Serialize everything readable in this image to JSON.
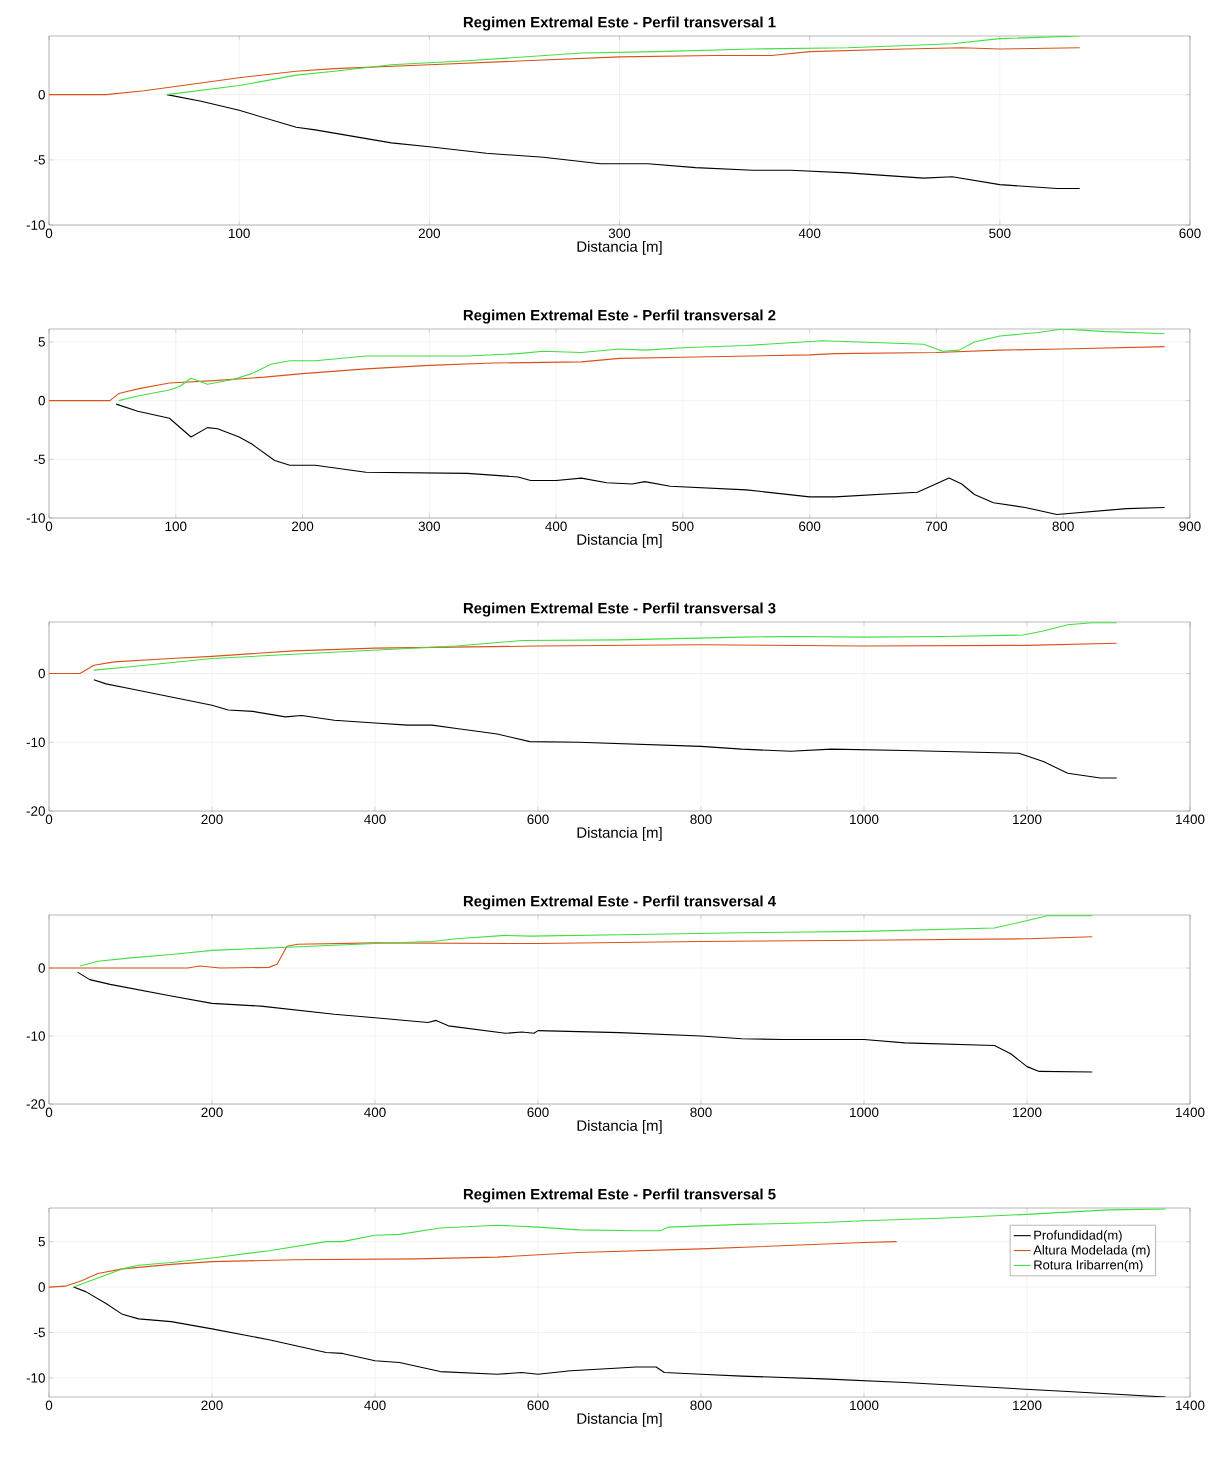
{
  "chart_data": [
    {
      "type": "line",
      "title": "Regimen Extremal Este - Perfil transversal 1",
      "xlabel": "Distancia [m]",
      "xlim": [
        0,
        600
      ],
      "ylim": [
        -10,
        4.5
      ],
      "xticks": [
        0,
        100,
        200,
        300,
        400,
        500,
        600
      ],
      "yticks": [
        -10,
        -5,
        0
      ],
      "grid": true,
      "line_style": "solid",
      "marker": "none",
      "series": [
        {
          "color": "#000000",
          "x": [
            62,
            80,
            100,
            130,
            140,
            160,
            180,
            200,
            230,
            260,
            290,
            315,
            340,
            370,
            390,
            420,
            460,
            475,
            500,
            530,
            542
          ],
          "values": [
            0,
            -0.5,
            -1.2,
            -2.5,
            -2.7,
            -3.2,
            -3.7,
            -4.0,
            -4.5,
            -4.8,
            -5.3,
            -5.3,
            -5.6,
            -5.8,
            -5.8,
            -6.0,
            -6.4,
            -6.3,
            -6.9,
            -7.2,
            -7.2
          ]
        },
        {
          "color": "#d95319",
          "x": [
            0,
            30,
            50,
            75,
            100,
            130,
            150,
            200,
            250,
            300,
            350,
            380,
            400,
            450,
            480,
            500,
            542
          ],
          "values": [
            0,
            0,
            0.3,
            0.8,
            1.3,
            1.8,
            2.0,
            2.3,
            2.6,
            2.9,
            3.0,
            3.0,
            3.3,
            3.5,
            3.6,
            3.5,
            3.6
          ]
        },
        {
          "color": "#40e040",
          "x": [
            62,
            100,
            130,
            150,
            180,
            220,
            280,
            320,
            370,
            420,
            475,
            500,
            542
          ],
          "values": [
            0,
            0.7,
            1.5,
            1.8,
            2.3,
            2.6,
            3.2,
            3.3,
            3.5,
            3.6,
            3.9,
            4.3,
            4.5
          ]
        }
      ]
    },
    {
      "type": "line",
      "title": "Regimen Extremal Este - Perfil transversal 2",
      "xlabel": "Distancia [m]",
      "xlim": [
        0,
        900
      ],
      "ylim": [
        -10,
        6.1
      ],
      "xticks": [
        0,
        100,
        200,
        300,
        400,
        500,
        600,
        700,
        800,
        900
      ],
      "yticks": [
        -10,
        -5,
        0,
        5
      ],
      "grid": true,
      "line_style": "solid",
      "marker": "none",
      "series": [
        {
          "color": "#000000",
          "x": [
            53,
            70,
            95,
            112,
            125,
            133,
            150,
            160,
            178,
            190,
            210,
            250,
            330,
            370,
            380,
            400,
            420,
            440,
            460,
            470,
            490,
            550,
            600,
            620,
            685,
            710,
            720,
            730,
            745,
            770,
            795,
            850,
            880
          ],
          "values": [
            -0.3,
            -0.9,
            -1.5,
            -3.1,
            -2.3,
            -2.4,
            -3.1,
            -3.7,
            -5.1,
            -5.5,
            -5.5,
            -6.1,
            -6.2,
            -6.5,
            -6.8,
            -6.8,
            -6.6,
            -7.0,
            -7.1,
            -6.9,
            -7.3,
            -7.6,
            -8.2,
            -8.2,
            -7.8,
            -6.6,
            -7.1,
            -8.0,
            -8.7,
            -9.1,
            -9.7,
            -9.2,
            -9.1
          ]
        },
        {
          "color": "#d95319",
          "x": [
            0,
            48,
            55,
            70,
            95,
            130,
            170,
            200,
            250,
            300,
            350,
            420,
            450,
            500,
            600,
            620,
            700,
            750,
            800,
            880
          ],
          "values": [
            0,
            0,
            0.6,
            1.0,
            1.5,
            1.7,
            2.0,
            2.3,
            2.7,
            3.0,
            3.2,
            3.3,
            3.6,
            3.7,
            3.9,
            4.0,
            4.1,
            4.3,
            4.4,
            4.6
          ]
        },
        {
          "color": "#40e040",
          "x": [
            55,
            70,
            95,
            103,
            112,
            125,
            145,
            160,
            175,
            190,
            210,
            250,
            330,
            370,
            390,
            420,
            450,
            470,
            500,
            550,
            610,
            690,
            705,
            718,
            730,
            750,
            780,
            800,
            830,
            880
          ],
          "values": [
            0,
            0.4,
            0.9,
            1.2,
            1.9,
            1.4,
            1.8,
            2.3,
            3.1,
            3.4,
            3.4,
            3.8,
            3.8,
            4.0,
            4.2,
            4.1,
            4.4,
            4.3,
            4.5,
            4.7,
            5.1,
            4.8,
            4.2,
            4.3,
            5.0,
            5.5,
            5.8,
            6.1,
            5.9,
            5.7
          ]
        }
      ]
    },
    {
      "type": "line",
      "title": "Regimen Extremal Este - Perfil transversal 3",
      "xlabel": "Distancia [m]",
      "xlim": [
        0,
        1400
      ],
      "ylim": [
        -20,
        7.5
      ],
      "xticks": [
        0,
        200,
        400,
        600,
        800,
        1000,
        1200,
        1400
      ],
      "yticks": [
        -20,
        -10,
        0
      ],
      "grid": true,
      "line_style": "solid",
      "marker": "none",
      "series": [
        {
          "color": "#000000",
          "x": [
            55,
            70,
            100,
            150,
            200,
            220,
            250,
            290,
            310,
            350,
            400,
            440,
            470,
            500,
            550,
            590,
            650,
            800,
            850,
            910,
            960,
            1050,
            1190,
            1220,
            1250,
            1290,
            1310
          ],
          "values": [
            -0.9,
            -1.5,
            -2.2,
            -3.4,
            -4.6,
            -5.3,
            -5.5,
            -6.3,
            -6.1,
            -6.8,
            -7.2,
            -7.5,
            -7.5,
            -8.0,
            -8.8,
            -9.9,
            -10.0,
            -10.6,
            -11.0,
            -11.3,
            -11.0,
            -11.2,
            -11.6,
            -12.8,
            -14.5,
            -15.2,
            -15.2
          ]
        },
        {
          "color": "#d95319",
          "x": [
            0,
            38,
            55,
            80,
            150,
            200,
            300,
            400,
            600,
            800,
            1000,
            1200,
            1310
          ],
          "values": [
            0,
            0,
            1.2,
            1.7,
            2.2,
            2.5,
            3.3,
            3.7,
            4.0,
            4.2,
            4.0,
            4.1,
            4.4
          ]
        },
        {
          "color": "#40e040",
          "x": [
            55,
            100,
            200,
            300,
            400,
            500,
            580,
            700,
            850,
            910,
            1000,
            1100,
            1195,
            1220,
            1250,
            1280,
            1310
          ],
          "values": [
            0.5,
            1.0,
            2.2,
            2.8,
            3.4,
            4.0,
            4.8,
            4.9,
            5.3,
            5.4,
            5.3,
            5.4,
            5.6,
            6.2,
            7.1,
            7.4,
            7.4
          ]
        }
      ]
    },
    {
      "type": "line",
      "title": "Regimen Extremal Este - Perfil transversal 4",
      "xlabel": "Distancia [m]",
      "xlim": [
        0,
        1400
      ],
      "ylim": [
        -20,
        7.8
      ],
      "xticks": [
        0,
        200,
        400,
        600,
        800,
        1000,
        1200,
        1400
      ],
      "yticks": [
        -20,
        -10,
        0
      ],
      "grid": true,
      "line_style": "solid",
      "marker": "none",
      "series": [
        {
          "color": "#000000",
          "x": [
            35,
            50,
            75,
            150,
            200,
            260,
            350,
            400,
            465,
            475,
            490,
            560,
            580,
            595,
            600,
            700,
            800,
            850,
            900,
            1000,
            1050,
            1160,
            1180,
            1200,
            1215,
            1280
          ],
          "values": [
            -0.6,
            -1.7,
            -2.4,
            -4.1,
            -5.2,
            -5.6,
            -6.8,
            -7.3,
            -8.0,
            -7.7,
            -8.5,
            -9.6,
            -9.4,
            -9.6,
            -9.2,
            -9.5,
            -10.0,
            -10.4,
            -10.5,
            -10.5,
            -11.0,
            -11.4,
            -12.6,
            -14.5,
            -15.2,
            -15.3
          ]
        },
        {
          "color": "#d95319",
          "x": [
            0,
            170,
            185,
            210,
            270,
            280,
            292,
            305,
            400,
            600,
            800,
            1000,
            1200,
            1280
          ],
          "values": [
            0,
            0,
            0.3,
            0,
            0.1,
            0.6,
            3.2,
            3.5,
            3.7,
            3.6,
            3.9,
            4.1,
            4.3,
            4.6
          ]
        },
        {
          "color": "#40e040",
          "x": [
            38,
            60,
            100,
            150,
            200,
            300,
            400,
            470,
            500,
            560,
            590,
            700,
            850,
            1000,
            1160,
            1190,
            1225,
            1280
          ],
          "values": [
            0.3,
            1.0,
            1.5,
            2.0,
            2.6,
            3.1,
            3.6,
            3.9,
            4.3,
            4.8,
            4.7,
            4.9,
            5.2,
            5.4,
            5.9,
            6.7,
            7.7,
            7.7
          ]
        }
      ]
    },
    {
      "type": "line",
      "title": "Regimen Extremal Este - Perfil transversal 5",
      "xlabel": "Distancia [m]",
      "xlim": [
        0,
        1400
      ],
      "ylim": [
        -12.1,
        8.7
      ],
      "xticks": [
        0,
        200,
        400,
        600,
        800,
        1000,
        1200,
        1400
      ],
      "yticks": [
        -10,
        -5,
        0,
        5
      ],
      "grid": true,
      "line_style": "solid",
      "marker": "none",
      "legend": "top right",
      "series": [
        {
          "name": "Profundidad(m)",
          "color": "#000000",
          "x": [
            30,
            45,
            70,
            90,
            110,
            150,
            200,
            270,
            340,
            360,
            400,
            430,
            480,
            550,
            580,
            600,
            640,
            700,
            720,
            745,
            755,
            800,
            850,
            950,
            1050,
            1150,
            1250,
            1370
          ],
          "values": [
            0,
            -0.5,
            -1.8,
            -3.0,
            -3.5,
            -3.8,
            -4.6,
            -5.8,
            -7.2,
            -7.3,
            -8.1,
            -8.3,
            -9.3,
            -9.6,
            -9.4,
            -9.6,
            -9.2,
            -8.9,
            -8.8,
            -8.8,
            -9.4,
            -9.6,
            -9.8,
            -10.1,
            -10.5,
            -11.0,
            -11.5,
            -12.1
          ]
        },
        {
          "name": "Altura Modelada (m)",
          "color": "#d95319",
          "x": [
            0,
            20,
            40,
            60,
            90,
            150,
            200,
            300,
            450,
            550,
            650,
            800,
            1000,
            1040
          ],
          "values": [
            0,
            0.1,
            0.7,
            1.5,
            2.0,
            2.5,
            2.8,
            3.0,
            3.1,
            3.3,
            3.8,
            4.2,
            4.9,
            5.0
          ]
        },
        {
          "name": "Rotura Iribarren(m)",
          "color": "#40e040",
          "x": [
            30,
            60,
            90,
            110,
            150,
            200,
            270,
            340,
            360,
            400,
            430,
            480,
            550,
            600,
            650,
            720,
            750,
            760,
            850,
            950,
            1000,
            1100,
            1200,
            1300,
            1370
          ],
          "values": [
            0,
            1.0,
            2.0,
            2.4,
            2.7,
            3.2,
            4.0,
            5.0,
            5.0,
            5.7,
            5.8,
            6.5,
            6.8,
            6.6,
            6.3,
            6.2,
            6.2,
            6.6,
            6.9,
            7.1,
            7.3,
            7.6,
            8.0,
            8.5,
            8.6
          ]
        }
      ]
    }
  ]
}
